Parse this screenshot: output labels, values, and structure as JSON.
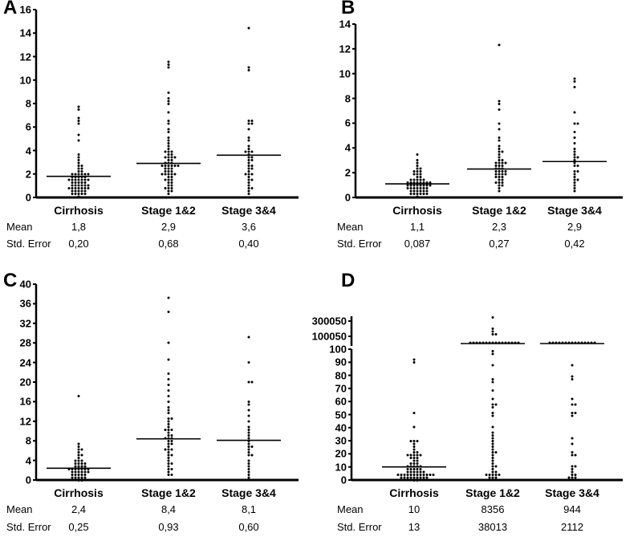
{
  "chart_data": [
    {
      "panel": "A",
      "type": "scatter",
      "ylim": [
        0,
        16
      ],
      "yticks": [
        0,
        2,
        4,
        6,
        8,
        10,
        12,
        14,
        16
      ],
      "categories": [
        "Cirrhosis",
        "Stage 1&2",
        "Stage 3&4"
      ],
      "stat_labels": [
        "Mean",
        "Std. Error"
      ],
      "means": [
        1.8,
        2.9,
        3.6
      ],
      "mean_text": [
        "1,8",
        "2,9",
        "3,6"
      ],
      "se_text": [
        "0,20",
        "0,68",
        "0,40"
      ],
      "points": [
        [
          7.7,
          7.5,
          6.8,
          6.5,
          6.2,
          5.3,
          4.9,
          3.6,
          3.3,
          3.1,
          2.9,
          2.8,
          2.6,
          2.5,
          2.4,
          2.3,
          2.2,
          2.1,
          2.0,
          2.0,
          1.9,
          1.9,
          1.8,
          1.8,
          1.7,
          1.7,
          1.6,
          1.6,
          1.5,
          1.5,
          1.4,
          1.4,
          1.3,
          1.3,
          1.2,
          1.2,
          1.1,
          1.1,
          1.0,
          1.0,
          0.9,
          0.9,
          0.8,
          0.8,
          0.7,
          0.7,
          0.6,
          0.6,
          0.5,
          0.5,
          0.4,
          0.3,
          0.2,
          0.1,
          1.5,
          1.0,
          0.6,
          2.0,
          1.8,
          0.4,
          1.1,
          0.8,
          1.3,
          0.2
        ],
        [
          11.5,
          11.4,
          11.0,
          9.0,
          8.5,
          8.2,
          8.0,
          7.2,
          6.5,
          6.2,
          5.8,
          5.5,
          5.0,
          4.8,
          4.6,
          4.4,
          4.2,
          4.0,
          3.9,
          3.8,
          3.6,
          3.5,
          3.4,
          3.3,
          3.2,
          3.1,
          3.0,
          3.0,
          2.9,
          2.8,
          2.8,
          2.7,
          2.6,
          2.6,
          2.5,
          2.4,
          2.3,
          2.3,
          2.2,
          2.1,
          2.0,
          2.0,
          1.9,
          1.8,
          1.7,
          1.6,
          1.5,
          1.4,
          1.3,
          1.2,
          1.1,
          1.0,
          0.9,
          0.8,
          0.7,
          0.6,
          0.5,
          0.4,
          3.6,
          2.5,
          1.9,
          2.7,
          3.3
        ],
        [
          14.5,
          11.0,
          10.8,
          6.6,
          6.5,
          6.4,
          6.2,
          5.7,
          5.2,
          4.8,
          4.4,
          4.1,
          3.9,
          3.8,
          3.6,
          3.5,
          3.3,
          3.1,
          3.0,
          2.8,
          2.6,
          2.4,
          2.2,
          2.0,
          1.9,
          1.7,
          1.5,
          1.3,
          1.1,
          0.9,
          0.7,
          0.5,
          0.3,
          2.5,
          3.2,
          4.0,
          1.6,
          2.1
        ]
      ]
    },
    {
      "panel": "B",
      "type": "scatter",
      "ylim": [
        0,
        14
      ],
      "yticks": [
        0,
        2,
        4,
        6,
        8,
        10,
        12,
        14
      ],
      "categories": [
        "Cirrhosis",
        "Stage 1&2",
        "Stage 3&4"
      ],
      "stat_labels": [
        "Mean",
        "Std. Error"
      ],
      "means": [
        1.1,
        2.3,
        2.9
      ],
      "mean_text": [
        "1,1",
        "2,3",
        "2,9"
      ],
      "se_text": [
        "0,087",
        "0,27",
        "0,42"
      ],
      "points": [
        [
          3.4,
          3.1,
          2.8,
          2.6,
          2.4,
          2.2,
          2.1,
          2.0,
          1.9,
          1.8,
          1.7,
          1.6,
          1.5,
          1.5,
          1.4,
          1.4,
          1.3,
          1.3,
          1.2,
          1.2,
          1.1,
          1.1,
          1.0,
          1.0,
          1.0,
          0.9,
          0.9,
          0.9,
          0.8,
          0.8,
          0.8,
          0.7,
          0.7,
          0.6,
          0.6,
          0.5,
          0.5,
          0.4,
          0.4,
          0.3,
          0.3,
          0.2,
          0.2,
          0.1,
          1.1,
          0.9,
          1.2,
          0.7,
          1.5,
          0.6,
          2.3,
          1.8,
          0.5,
          1.0,
          0.8
        ],
        [
          12.3,
          7.8,
          7.6,
          7.2,
          6.0,
          5.5,
          4.8,
          4.6,
          4.2,
          4.0,
          3.8,
          3.6,
          3.4,
          3.2,
          3.0,
          2.9,
          2.8,
          2.7,
          2.6,
          2.5,
          2.4,
          2.3,
          2.2,
          2.2,
          2.1,
          2.0,
          1.9,
          1.8,
          1.8,
          1.7,
          1.6,
          1.5,
          1.4,
          1.3,
          1.2,
          1.1,
          1.0,
          0.9,
          0.8,
          0.6,
          2.5,
          2.3,
          3.1,
          1.9,
          1.6,
          2.7
        ],
        [
          9.6,
          9.4,
          8.8,
          6.9,
          6.0,
          5.9,
          5.2,
          4.8,
          4.3,
          4.0,
          3.7,
          3.5,
          3.2,
          3.0,
          2.8,
          2.5,
          2.2,
          2.0,
          1.8,
          1.6,
          1.4,
          1.2,
          1.0,
          0.8,
          0.6,
          2.6,
          3.3,
          1.5
        ]
      ]
    },
    {
      "panel": "C",
      "type": "scatter",
      "ylim": [
        0,
        40
      ],
      "yticks": [
        0,
        4,
        8,
        12,
        16,
        20,
        24,
        28,
        32,
        36,
        40
      ],
      "categories": [
        "Cirrhosis",
        "Stage 1&2",
        "Stage 3&4"
      ],
      "stat_labels": [
        "Mean",
        "Std. Error"
      ],
      "means": [
        2.4,
        8.4,
        8.1
      ],
      "mean_text": [
        "2,4",
        "8,4",
        "8,1"
      ],
      "se_text": [
        "0,25",
        "0,93",
        "0,60"
      ],
      "points": [
        [
          17.4,
          7.2,
          6.8,
          6.4,
          6.0,
          5.6,
          5.2,
          4.8,
          4.4,
          4.2,
          4.0,
          3.8,
          3.6,
          3.4,
          3.2,
          3.0,
          2.8,
          2.6,
          2.5,
          2.4,
          2.3,
          2.2,
          2.0,
          1.9,
          1.8,
          1.6,
          1.5,
          1.4,
          1.2,
          1.0,
          0.9,
          0.8,
          0.6,
          0.5,
          0.4,
          0.3,
          0.2,
          0.1,
          2.4,
          2.1,
          1.6,
          3.1,
          1.2,
          0.7,
          2.9
        ],
        [
          37.2,
          34.1,
          27.8,
          24.5,
          21.5,
          20.8,
          19.6,
          18.0,
          17.0,
          16.2,
          15.0,
          14.2,
          13.5,
          12.8,
          12.0,
          11.5,
          11.0,
          10.5,
          10.0,
          9.6,
          9.2,
          8.8,
          8.4,
          8.0,
          7.6,
          7.2,
          6.8,
          6.4,
          6.0,
          5.6,
          5.2,
          4.8,
          4.4,
          4.0,
          3.6,
          3.2,
          2.8,
          2.4,
          2.0,
          1.6,
          1.2,
          0.8,
          8.6,
          9.1,
          7.8,
          10.3,
          6.5,
          12.4
        ],
        [
          29.0,
          23.8,
          20.0,
          19.8,
          16.0,
          15.2,
          14.5,
          13.2,
          12.0,
          11.0,
          10.0,
          9.2,
          8.5,
          8.0,
          7.4,
          6.8,
          6.0,
          5.5,
          4.8,
          4.2,
          3.6,
          3.0,
          2.4,
          1.8,
          1.2,
          0.6,
          9.5,
          7.0,
          5.2
        ]
      ]
    },
    {
      "panel": "D",
      "type": "scatter",
      "ylim": [
        0,
        300050
      ],
      "yticks": [
        0,
        10,
        20,
        30,
        40,
        50,
        60,
        70,
        80,
        90,
        100
      ],
      "yticks_broken": [
        100050,
        300050
      ],
      "categories": [
        "Cirrhosis",
        "Stage 1&2",
        "Stage 3&4"
      ],
      "stat_labels": [
        "Mean",
        "Std. Error"
      ],
      "means": [
        10,
        8356,
        944
      ],
      "mean_text": [
        "10",
        "8356",
        "944"
      ],
      "se_text": [
        "13",
        "38013",
        "2112"
      ],
      "points": [
        [
          92,
          90,
          51,
          40,
          30,
          30,
          29,
          27,
          26,
          23,
          22,
          21,
          20,
          20,
          20,
          19,
          18,
          17,
          16,
          16,
          15,
          14,
          13,
          12,
          12,
          11,
          10,
          10,
          10,
          9,
          9,
          8,
          8,
          7,
          7,
          6,
          6,
          6,
          5,
          5,
          5,
          4,
          4,
          4,
          3,
          3,
          3,
          3,
          2,
          2,
          2,
          2,
          1,
          1,
          1,
          1,
          0.5,
          0.5,
          8,
          6,
          3,
          2,
          4,
          11
        ],
        [
          350000,
          200000,
          150000,
          120000,
          110000,
          30000,
          20000,
          10000,
          5000,
          2000,
          1000,
          500,
          300,
          200,
          98,
          96,
          87,
          76,
          75,
          69,
          63,
          58,
          57,
          55,
          52,
          50,
          41,
          36,
          34,
          31,
          30,
          27,
          25,
          23,
          22,
          21,
          19,
          17,
          15,
          12,
          11,
          10,
          8,
          7,
          6,
          5,
          4,
          4,
          3,
          3,
          2,
          2,
          1,
          20000,
          9000,
          4000,
          1500,
          800,
          400,
          150
        ],
        [
          5000,
          3000,
          2000,
          1500,
          1000,
          800,
          600,
          500,
          400,
          300,
          250,
          200,
          150,
          120,
          110,
          87,
          79,
          78,
          61,
          58,
          57,
          52,
          51,
          50,
          31,
          27,
          22,
          20,
          18,
          11,
          10,
          8,
          6,
          4,
          3,
          2,
          2,
          1
        ]
      ]
    }
  ]
}
